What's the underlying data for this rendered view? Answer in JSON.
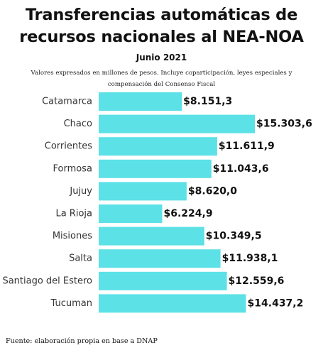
{
  "header": {
    "title_line1": "Transferencias automáticas de",
    "title_line2": "recursos nacionales al NEA-NOA",
    "subtitle": "Junio 2021",
    "note_line1": "Valores expresados en millones de pesos. Incluye coparticipación, leyes especiales y",
    "note_line2": "compensación del Consenso Fiscal"
  },
  "footer": {
    "source": "Fuente: elaboración propia en base a DNAP"
  },
  "chart_data": {
    "type": "bar",
    "orientation": "horizontal",
    "categories": [
      "Catamarca",
      "Chaco",
      "Corrientes",
      "Formosa",
      "Jujuy",
      "La Rioja",
      "Misiones",
      "Salta",
      "Santiago del Estero",
      "Tucuman"
    ],
    "values": [
      8151.3,
      15303.6,
      11611.9,
      11043.6,
      8620.0,
      6224.9,
      10349.5,
      11938.1,
      12559.6,
      14437.2
    ],
    "value_labels": [
      "$8.151,3",
      "$15.303,6",
      "$11.611,9",
      "$11.043,6",
      "$8.620,0",
      "$6.224,9",
      "$10.349,5",
      "$11.938,1",
      "$12.559,6",
      "$14.437,2"
    ],
    "bar_color": "#5ce1e6",
    "grid": false,
    "legend": "none"
  }
}
